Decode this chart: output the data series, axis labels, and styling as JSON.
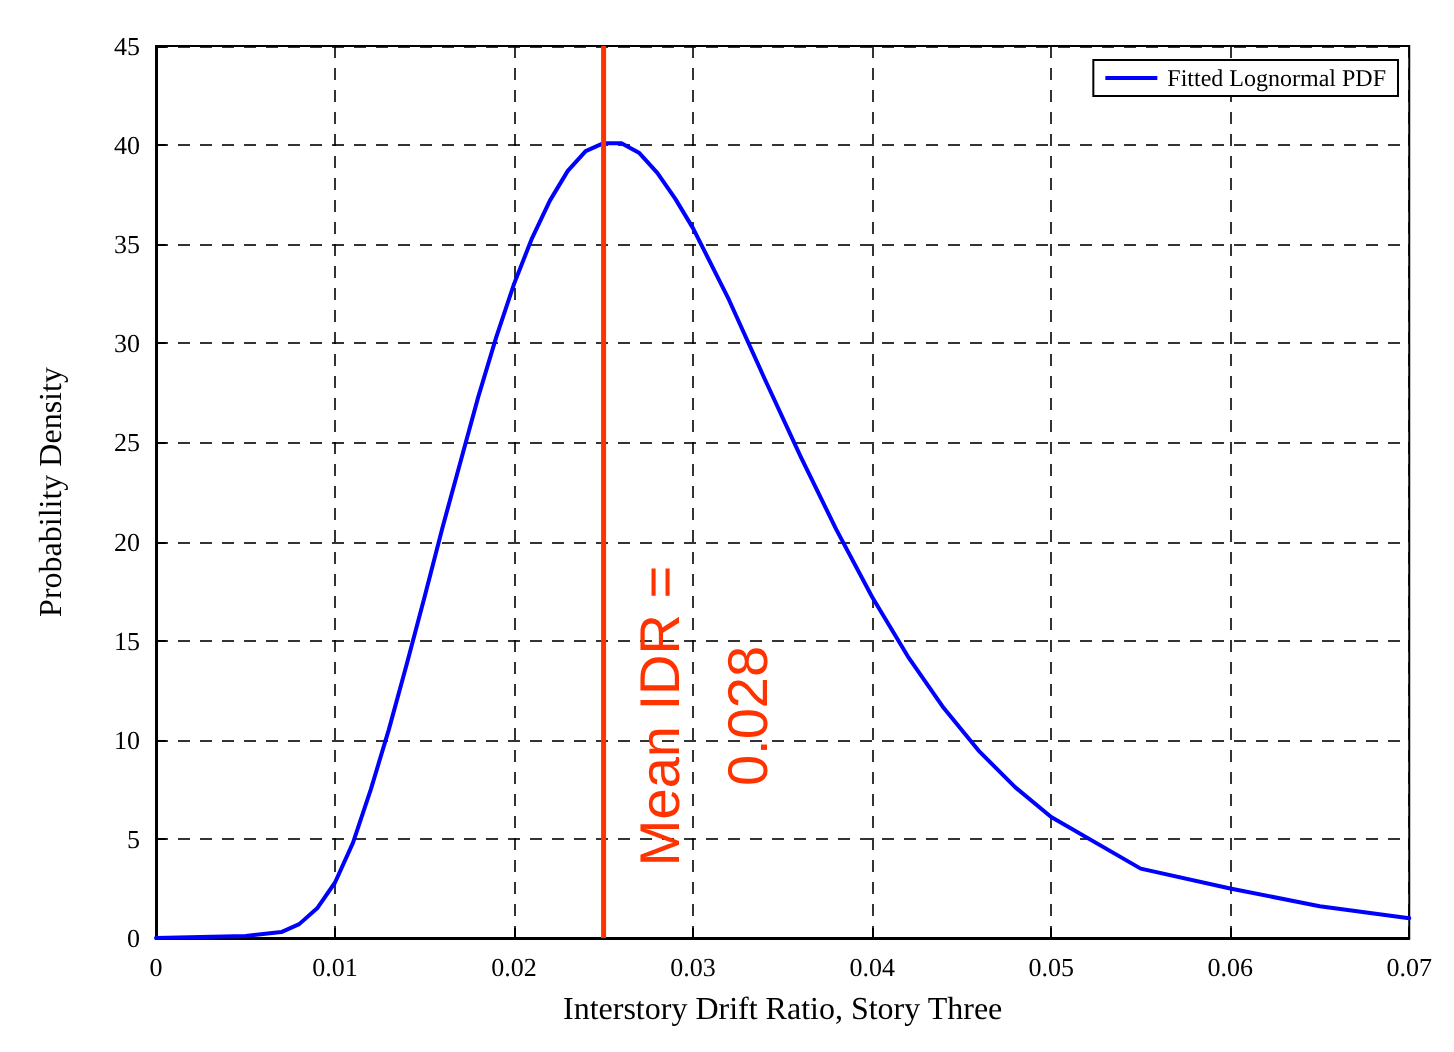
{
  "chart_data": {
    "type": "line",
    "xlabel": "Interstory Drift Ratio, Story Three",
    "ylabel": "Probability Density",
    "series": [
      {
        "name": "Fitted Lognormal PDF",
        "color": "#0000ff",
        "x": [
          0,
          0.005,
          0.007,
          0.008,
          0.009,
          0.01,
          0.011,
          0.012,
          0.013,
          0.014,
          0.015,
          0.016,
          0.017,
          0.018,
          0.019,
          0.02,
          0.021,
          0.022,
          0.023,
          0.024,
          0.025,
          0.026,
          0.027,
          0.028,
          0.029,
          0.03,
          0.032,
          0.034,
          0.036,
          0.038,
          0.04,
          0.042,
          0.044,
          0.046,
          0.048,
          0.05,
          0.055,
          0.06,
          0.065,
          0.07
        ],
        "values": [
          0,
          0.1,
          0.3,
          0.7,
          1.5,
          2.8,
          4.8,
          7.5,
          10.5,
          13.8,
          17.2,
          20.7,
          24,
          27.3,
          30.3,
          33,
          35.3,
          37.2,
          38.7,
          39.7,
          40.1,
          40.1,
          39.6,
          38.6,
          37.3,
          35.8,
          32.2,
          28.2,
          24.3,
          20.6,
          17.2,
          14.2,
          11.6,
          9.4,
          7.6,
          6.1,
          3.5,
          2.5,
          1.6,
          1.0
        ]
      }
    ],
    "xlim": [
      0,
      0.07
    ],
    "xticks": [
      0,
      0.01,
      0.02,
      0.03,
      0.04,
      0.05,
      0.06,
      0.07
    ],
    "ylim": [
      0,
      45
    ],
    "yticks": [
      0,
      5,
      10,
      15,
      20,
      25,
      30,
      35,
      40,
      45
    ],
    "ref_lines": [
      {
        "axis": "x",
        "value": 0.025,
        "color": "#ff3300"
      }
    ],
    "annotations": [
      "Mean IDR =\n0.028"
    ],
    "grid": true,
    "legend": "top right",
    "marker": "none",
    "line_style": "solid"
  }
}
